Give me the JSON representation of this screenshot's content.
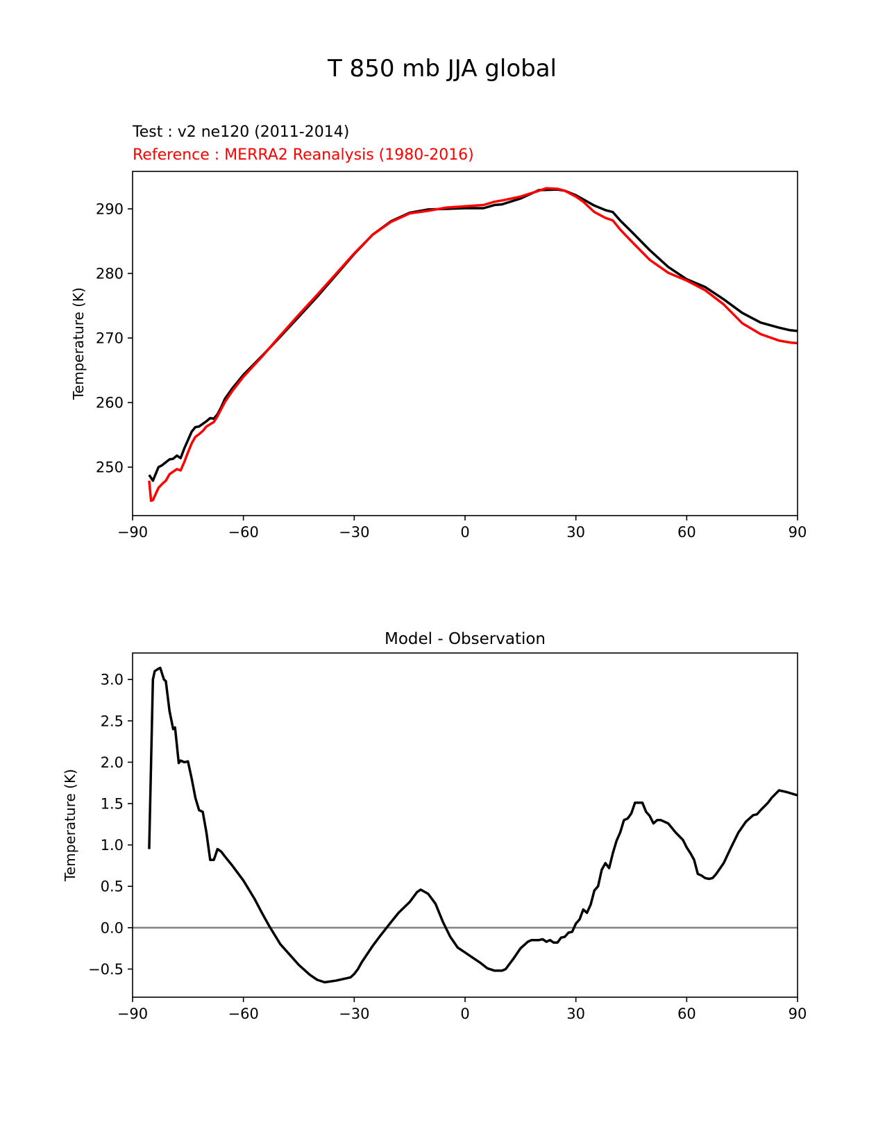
{
  "figure": {
    "title": "T 850 mb JJA global",
    "test_label": "Test : v2 ne120 (2011-2014)",
    "reference_label": "Reference : MERRA2 Reanalysis (1980-2016)"
  },
  "colors": {
    "test": "#000000",
    "reference": "#ff0000",
    "zero_line": "#808080",
    "axes": "#000000"
  },
  "chart_data": [
    {
      "type": "line",
      "title": "",
      "xlabel": "",
      "ylabel": "Temperature (K)",
      "xlim": [
        -90,
        90
      ],
      "ylim": [
        242.5,
        295.8
      ],
      "xticks": [
        -90,
        -60,
        -30,
        0,
        30,
        60,
        90
      ],
      "xtick_labels": [
        "−90",
        "−60",
        "−30",
        "0",
        "30",
        "60",
        "90"
      ],
      "yticks": [
        250,
        260,
        270,
        280,
        290
      ],
      "ytick_labels": [
        "250",
        "260",
        "270",
        "280",
        "290"
      ],
      "series": [
        {
          "name": "Test : v2 ne120 (2011-2014)",
          "color": "#000000",
          "x": [
            -85.5,
            -84.5,
            -83,
            -82,
            -80,
            -79,
            -78,
            -77,
            -76,
            -74,
            -73,
            -72,
            -70,
            -69,
            -68,
            -67,
            -66,
            -65,
            -63,
            -60,
            -55,
            -50,
            -45,
            -40,
            -35,
            -30,
            -25,
            -20,
            -15,
            -10,
            -5,
            0,
            5,
            8,
            10,
            15,
            20,
            25,
            27,
            30,
            35,
            38,
            40,
            42,
            45,
            50,
            55,
            60,
            65,
            70,
            75,
            80,
            85,
            88,
            90
          ],
          "y": [
            248.8,
            247.9,
            250.0,
            250.3,
            251.2,
            251.3,
            251.8,
            251.4,
            252.9,
            255.5,
            256.2,
            256.3,
            257.1,
            257.6,
            257.5,
            258.2,
            259.3,
            260.6,
            262.2,
            264.3,
            267.2,
            270.2,
            273.3,
            276.4,
            279.7,
            283.0,
            286.0,
            288.1,
            289.4,
            289.9,
            290.0,
            290.1,
            290.1,
            290.6,
            290.7,
            291.6,
            292.9,
            293.0,
            292.8,
            292.1,
            290.5,
            289.8,
            289.5,
            288.2,
            286.5,
            283.6,
            281.0,
            279.1,
            277.9,
            276.0,
            273.9,
            272.4,
            271.6,
            271.2,
            271.1
          ]
        },
        {
          "name": "Reference : MERRA2 Reanalysis (1980-2016)",
          "color": "#ff0000",
          "x": [
            -85.5,
            -85,
            -84.5,
            -83,
            -82,
            -81,
            -80,
            -79,
            -78,
            -77,
            -76,
            -75,
            -74,
            -73,
            -72,
            -71,
            -70,
            -68,
            -67,
            -66,
            -65,
            -63,
            -60,
            -55,
            -50,
            -45,
            -40,
            -35,
            -30,
            -25,
            -20,
            -15,
            -10,
            -5,
            0,
            5,
            8,
            10,
            15,
            20,
            22,
            25,
            27,
            30,
            32,
            35,
            38,
            40,
            42,
            45,
            50,
            55,
            60,
            65,
            70,
            75,
            80,
            85,
            88,
            90
          ],
          "y": [
            247.9,
            244.8,
            244.9,
            246.8,
            247.4,
            247.9,
            248.9,
            249.3,
            249.7,
            249.5,
            250.8,
            252.3,
            253.7,
            254.7,
            255.1,
            255.6,
            256.3,
            257.0,
            257.9,
            259.0,
            260.1,
            261.8,
            264.0,
            267.1,
            270.4,
            273.6,
            276.7,
            279.9,
            283.1,
            286.0,
            288.0,
            289.3,
            289.7,
            290.2,
            290.4,
            290.6,
            291.1,
            291.3,
            291.9,
            292.8,
            293.2,
            293.1,
            292.8,
            291.9,
            291.1,
            289.5,
            288.6,
            288.2,
            286.8,
            285.0,
            282.1,
            280.1,
            278.9,
            277.4,
            275.2,
            272.3,
            270.6,
            269.6,
            269.3,
            269.2
          ]
        }
      ]
    },
    {
      "type": "line",
      "title": "Model - Observation",
      "xlabel": "",
      "ylabel": "Temperature (K)",
      "xlim": [
        -90,
        90
      ],
      "ylim": [
        -0.84,
        3.32
      ],
      "xticks": [
        -90,
        -60,
        -30,
        0,
        30,
        60,
        90
      ],
      "xtick_labels": [
        "−90",
        "−60",
        "−30",
        "0",
        "30",
        "60",
        "90"
      ],
      "yticks": [
        -0.5,
        0.0,
        0.5,
        1.0,
        1.5,
        2.0,
        2.5,
        3.0
      ],
      "ytick_labels": [
        "−0.5",
        "0.0",
        "0.5",
        "1.0",
        "1.5",
        "2.0",
        "2.5",
        "3.0"
      ],
      "zero_line": 0.0,
      "series": [
        {
          "name": "Model - Observation",
          "color": "#000000",
          "x": [
            -85.5,
            -84.5,
            -84,
            -83,
            -82.5,
            -81.5,
            -81,
            -80,
            -79,
            -78.5,
            -77.5,
            -77,
            -76,
            -75,
            -74,
            -73,
            -72,
            -71,
            -70,
            -69,
            -68,
            -67,
            -66,
            -65,
            -63,
            -60,
            -57,
            -55,
            -53,
            -50,
            -47,
            -45,
            -42,
            -40,
            -38,
            -35,
            -33,
            -31,
            -30,
            -29,
            -28,
            -25,
            -23,
            -20,
            -18,
            -15,
            -13,
            -12,
            -10,
            -8,
            -6,
            -4,
            -2,
            0,
            2,
            4,
            6,
            8,
            10,
            11,
            13,
            15,
            17,
            18,
            19,
            20,
            21,
            22,
            23,
            24,
            25,
            26,
            27,
            28,
            29,
            30,
            31,
            32,
            33,
            34,
            35,
            36,
            37,
            38,
            39,
            40,
            41,
            42,
            43,
            44,
            45,
            46,
            47,
            48,
            49,
            50,
            51,
            52,
            53,
            55,
            57,
            59,
            60,
            61,
            62,
            63,
            64,
            65,
            66,
            67,
            68,
            70,
            72,
            74,
            76,
            78,
            79,
            80,
            82,
            83,
            85,
            87,
            90
          ],
          "y": [
            0.95,
            3.0,
            3.1,
            3.13,
            3.14,
            3.0,
            2.98,
            2.62,
            2.4,
            2.42,
            1.99,
            2.02,
            2.0,
            2.01,
            1.8,
            1.57,
            1.42,
            1.4,
            1.15,
            0.82,
            0.82,
            0.95,
            0.92,
            0.86,
            0.75,
            0.57,
            0.35,
            0.18,
            0.02,
            -0.2,
            -0.35,
            -0.45,
            -0.57,
            -0.63,
            -0.66,
            -0.64,
            -0.62,
            -0.6,
            -0.56,
            -0.5,
            -0.42,
            -0.22,
            -0.1,
            0.07,
            0.18,
            0.31,
            0.43,
            0.46,
            0.41,
            0.29,
            0.07,
            -0.11,
            -0.24,
            -0.3,
            -0.36,
            -0.42,
            -0.49,
            -0.52,
            -0.52,
            -0.5,
            -0.38,
            -0.25,
            -0.17,
            -0.15,
            -0.15,
            -0.15,
            -0.14,
            -0.17,
            -0.15,
            -0.18,
            -0.18,
            -0.12,
            -0.11,
            -0.06,
            -0.05,
            0.05,
            0.1,
            0.22,
            0.18,
            0.28,
            0.45,
            0.5,
            0.7,
            0.78,
            0.72,
            0.9,
            1.05,
            1.15,
            1.3,
            1.32,
            1.38,
            1.51,
            1.51,
            1.51,
            1.4,
            1.35,
            1.26,
            1.3,
            1.3,
            1.26,
            1.15,
            1.06,
            0.97,
            0.9,
            0.82,
            0.65,
            0.63,
            0.6,
            0.59,
            0.6,
            0.65,
            0.78,
            0.97,
            1.15,
            1.28,
            1.36,
            1.37,
            1.42,
            1.51,
            1.57,
            1.66,
            1.64,
            1.6
          ]
        }
      ]
    }
  ]
}
